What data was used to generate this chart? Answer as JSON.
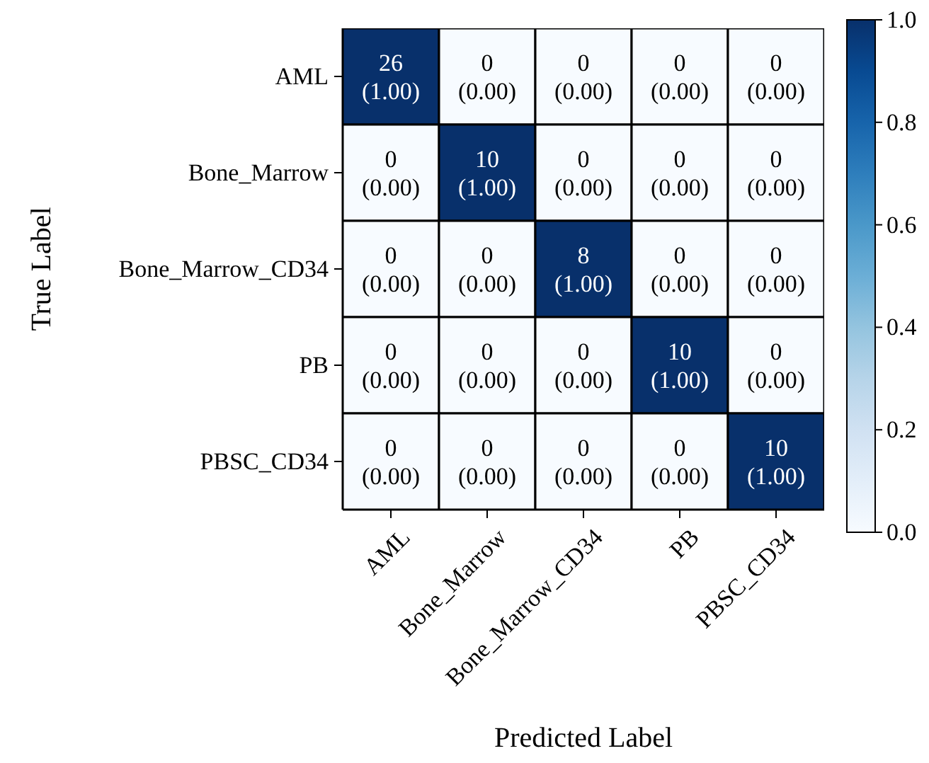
{
  "chart_data": {
    "type": "heatmap",
    "xlabel": "Predicted Label",
    "ylabel": "True Label",
    "categories": [
      "AML",
      "Bone_Marrow",
      "Bone_Marrow_CD34",
      "PB",
      "PBSC_CD34"
    ],
    "y_categories": [
      "AML",
      "Bone_Marrow",
      "Bone_Marrow_CD34",
      "PB",
      "PBSC_CD34"
    ],
    "cells": [
      [
        1.0,
        0.0,
        0.0,
        0.0,
        0.0
      ],
      [
        0.0,
        1.0,
        0.0,
        0.0,
        0.0
      ],
      [
        0.0,
        0.0,
        1.0,
        0.0,
        0.0
      ],
      [
        0.0,
        0.0,
        0.0,
        1.0,
        0.0
      ],
      [
        0.0,
        0.0,
        0.0,
        0.0,
        1.0
      ]
    ],
    "cell_labels": [
      [
        "26\n(1.00)",
        "0\n(0.00)",
        "0\n(0.00)",
        "0\n(0.00)",
        "0\n(0.00)"
      ],
      [
        "0\n(0.00)",
        "10\n(1.00)",
        "0\n(0.00)",
        "0\n(0.00)",
        "0\n(0.00)"
      ],
      [
        "0\n(0.00)",
        "0\n(0.00)",
        "8\n(1.00)",
        "0\n(0.00)",
        "0\n(0.00)"
      ],
      [
        "0\n(0.00)",
        "0\n(0.00)",
        "0\n(0.00)",
        "10\n(1.00)",
        "0\n(0.00)"
      ],
      [
        "0\n(0.00)",
        "0\n(0.00)",
        "0\n(0.00)",
        "0\n(0.00)",
        "10\n(1.00)"
      ]
    ],
    "clim": [
      0.0,
      1.0
    ],
    "cticks": [
      {
        "value": 0.0,
        "label": "0.0"
      },
      {
        "value": 0.2,
        "label": "0.2"
      },
      {
        "value": 0.4,
        "label": "0.4"
      },
      {
        "value": 0.6,
        "label": "0.6"
      },
      {
        "value": 0.8,
        "label": "0.8"
      },
      {
        "value": 1.0,
        "label": "1.0"
      }
    ]
  }
}
